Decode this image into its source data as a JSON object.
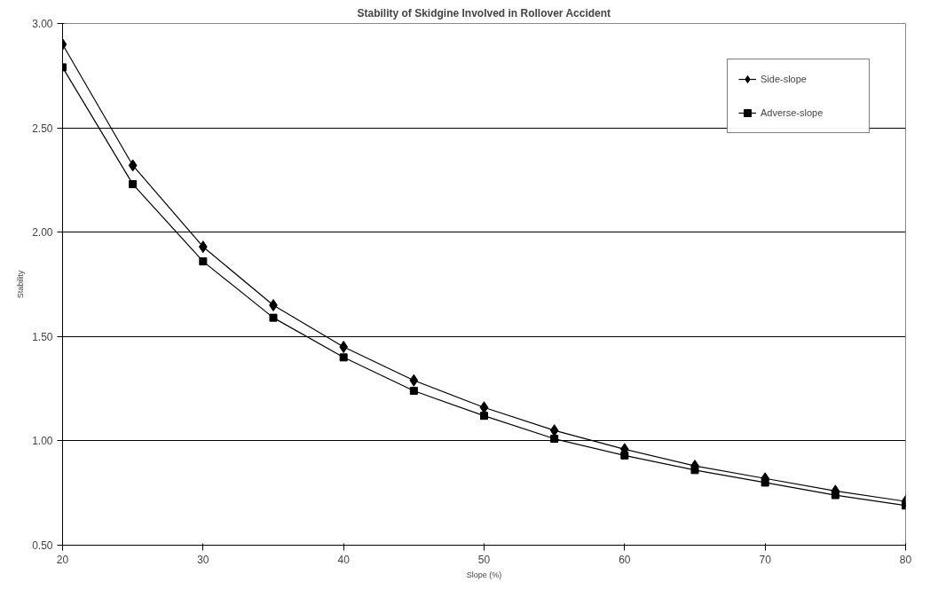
{
  "chart_data": {
    "type": "line",
    "title": "Stability of Skidgine Involved in Rollover Accident",
    "xlabel": "Slope (%)",
    "ylabel": "Stability",
    "x": [
      20,
      25,
      30,
      35,
      40,
      45,
      50,
      55,
      60,
      65,
      70,
      75,
      80
    ],
    "series": [
      {
        "name": "Side-slope",
        "color": "#000000",
        "marker": "diamond",
        "values": [
          2.9,
          2.32,
          1.93,
          1.65,
          1.45,
          1.29,
          1.16,
          1.05,
          0.96,
          0.88,
          0.82,
          0.76,
          0.71
        ]
      },
      {
        "name": "Adverse-slope",
        "color": "#000000",
        "marker": "square",
        "values": [
          2.79,
          2.23,
          1.86,
          1.59,
          1.4,
          1.24,
          1.12,
          1.01,
          0.93,
          0.86,
          0.8,
          0.74,
          0.69
        ]
      }
    ],
    "xlim": [
      20,
      80
    ],
    "xticks": [
      20,
      30,
      40,
      50,
      60,
      70,
      80
    ],
    "ylim": [
      0.5,
      3.0
    ],
    "yticks": [
      {
        "value": 0.5,
        "label": "0.50"
      },
      {
        "value": 1.0,
        "label": "1.00"
      },
      {
        "value": 1.5,
        "label": "1.50"
      },
      {
        "value": 2.0,
        "label": "2.00"
      },
      {
        "value": 2.5,
        "label": "2.50"
      },
      {
        "value": 3.0,
        "label": "3.00"
      }
    ],
    "grid": "y",
    "legend": "top right",
    "line_style": "solid"
  }
}
